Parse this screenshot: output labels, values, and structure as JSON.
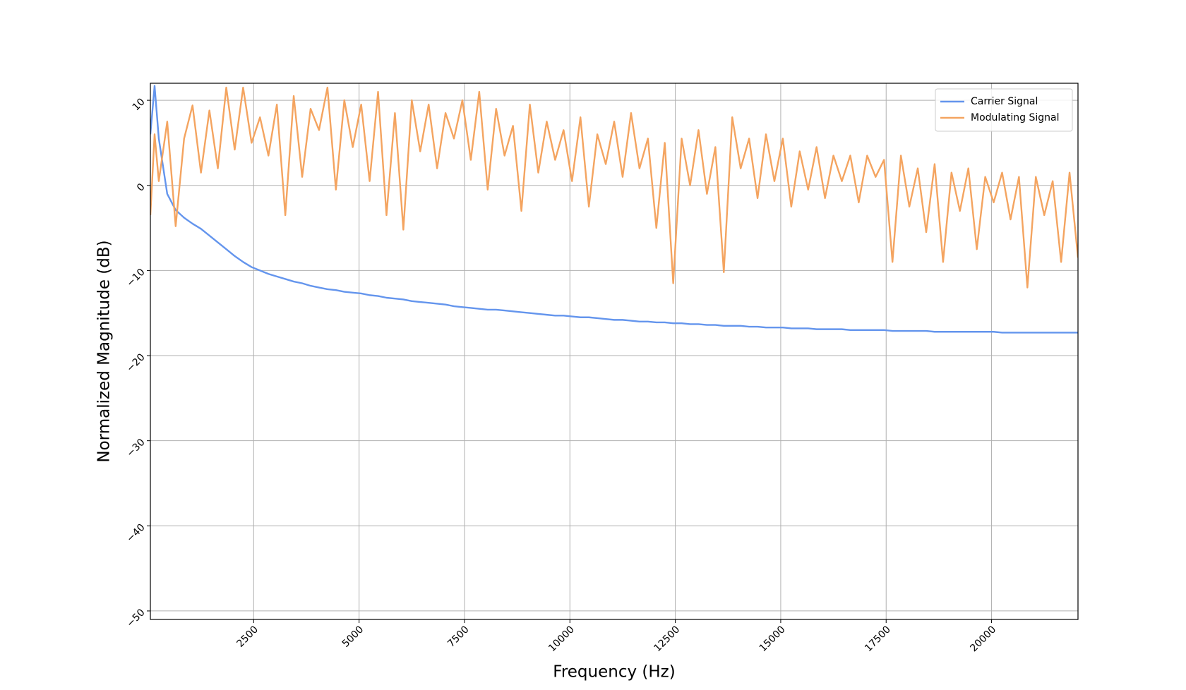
{
  "chart_data": {
    "type": "line",
    "xlabel": "Frequency (Hz)",
    "ylabel": "Normalized Magnitude (dB)",
    "x": [
      50,
      150,
      250,
      450,
      650,
      850,
      1050,
      1250,
      1450,
      1650,
      1850,
      2050,
      2250,
      2450,
      2650,
      2850,
      3050,
      3250,
      3450,
      3650,
      3850,
      4050,
      4250,
      4450,
      4650,
      4850,
      5050,
      5250,
      5450,
      5650,
      5850,
      6050,
      6250,
      6450,
      6650,
      6850,
      7050,
      7250,
      7450,
      7650,
      7850,
      8050,
      8250,
      8450,
      8650,
      8850,
      9050,
      9250,
      9450,
      9650,
      9850,
      10050,
      10250,
      10450,
      10650,
      10850,
      11050,
      11250,
      11450,
      11650,
      11850,
      12050,
      12250,
      12450,
      12650,
      12850,
      13050,
      13250,
      13450,
      13650,
      13850,
      14050,
      14250,
      14450,
      14650,
      14850,
      15050,
      15250,
      15450,
      15650,
      15850,
      16050,
      16250,
      16450,
      16650,
      16850,
      17050,
      17250,
      17450,
      17650,
      17850,
      18050,
      18250,
      18450,
      18650,
      18850,
      19050,
      19250,
      19450,
      19650,
      19850,
      20050,
      20250,
      20450,
      20650,
      20850,
      21050,
      21250,
      21450,
      21650,
      21850,
      22050
    ],
    "series": [
      {
        "name": "Carrier Signal",
        "color": "#6495ed",
        "values": [
          6.0,
          11.7,
          5.5,
          -1.0,
          -2.9,
          -3.8,
          -4.5,
          -5.1,
          -5.9,
          -6.7,
          -7.5,
          -8.3,
          -9.0,
          -9.6,
          -10.0,
          -10.4,
          -10.7,
          -11.0,
          -11.3,
          -11.5,
          -11.8,
          -12.0,
          -12.2,
          -12.3,
          -12.5,
          -12.6,
          -12.7,
          -12.9,
          -13.0,
          -13.2,
          -13.3,
          -13.4,
          -13.6,
          -13.7,
          -13.8,
          -13.9,
          -14.0,
          -14.2,
          -14.3,
          -14.4,
          -14.5,
          -14.6,
          -14.6,
          -14.7,
          -14.8,
          -14.9,
          -15.0,
          -15.1,
          -15.2,
          -15.3,
          -15.3,
          -15.4,
          -15.5,
          -15.5,
          -15.6,
          -15.7,
          -15.8,
          -15.8,
          -15.9,
          -16.0,
          -16.0,
          -16.1,
          -16.1,
          -16.2,
          -16.2,
          -16.3,
          -16.3,
          -16.4,
          -16.4,
          -16.5,
          -16.5,
          -16.5,
          -16.6,
          -16.6,
          -16.7,
          -16.7,
          -16.7,
          -16.8,
          -16.8,
          -16.8,
          -16.9,
          -16.9,
          -16.9,
          -16.9,
          -17.0,
          -17.0,
          -17.0,
          -17.0,
          -17.0,
          -17.1,
          -17.1,
          -17.1,
          -17.1,
          -17.1,
          -17.2,
          -17.2,
          -17.2,
          -17.2,
          -17.2,
          -17.2,
          -17.2,
          -17.2,
          -17.3,
          -17.3,
          -17.3,
          -17.3,
          -17.3,
          -17.3,
          -17.3,
          -17.3,
          -17.3,
          -17.3
        ]
      },
      {
        "name": "Modulating Signal",
        "color": "#f4a460",
        "values": [
          -3.5,
          6.0,
          0.5,
          7.5,
          -4.8,
          5.5,
          9.4,
          1.5,
          8.8,
          2.0,
          11.5,
          4.2,
          11.5,
          5.0,
          8.0,
          3.5,
          9.5,
          -3.5,
          10.5,
          1.0,
          9.0,
          6.5,
          11.5,
          -0.5,
          10.0,
          4.5,
          9.5,
          0.5,
          11.0,
          -3.5,
          8.5,
          -5.2,
          10.0,
          4.0,
          9.5,
          2.0,
          8.5,
          5.5,
          10.0,
          3.0,
          11.0,
          -0.5,
          9.0,
          3.5,
          7.0,
          -3.0,
          9.5,
          1.5,
          7.5,
          3.0,
          6.5,
          0.5,
          8.0,
          -2.5,
          6.0,
          2.5,
          7.5,
          1.0,
          8.5,
          2.0,
          5.5,
          -5.0,
          5.0,
          -11.5,
          5.5,
          0.0,
          6.5,
          -1.0,
          4.5,
          -10.2,
          8.0,
          2.0,
          5.5,
          -1.5,
          6.0,
          0.5,
          5.5,
          -2.5,
          4.0,
          -0.5,
          4.5,
          -1.5,
          3.5,
          0.5,
          3.5,
          -2.0,
          3.5,
          1.0,
          3.0,
          -9.0,
          3.5,
          -2.5,
          2.0,
          -5.5,
          2.5,
          -9.0,
          1.5,
          -3.0,
          2.0,
          -7.5,
          1.0,
          -2.0,
          1.5,
          -4.0,
          1.0,
          -12.0,
          1.0,
          -3.5,
          0.5,
          -9.0,
          1.5,
          -8.5
        ]
      }
    ],
    "xlim": [
      50,
      22050
    ],
    "xticks": [
      2500,
      5000,
      7500,
      10000,
      12500,
      15000,
      17500,
      20000
    ],
    "ylim": [
      -51,
      12
    ],
    "yticks": [
      {
        "value": -50,
        "label": "−50"
      },
      {
        "value": -40,
        "label": "−40"
      },
      {
        "value": -30,
        "label": "−30"
      },
      {
        "value": -20,
        "label": "−20"
      },
      {
        "value": -10,
        "label": "−10"
      },
      0,
      10
    ],
    "grid": true,
    "legend": "upper right"
  }
}
